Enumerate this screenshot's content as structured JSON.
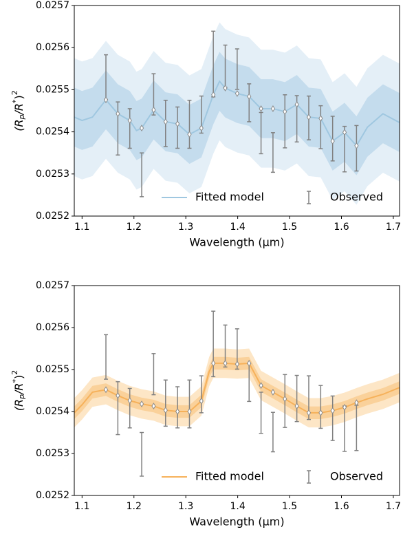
{
  "chart_data": [
    {
      "type": "line",
      "xlabel": "Wavelength (μm)",
      "ylabel_parts": [
        "(R",
        "p",
        "/R",
        "*",
        ")",
        "2"
      ],
      "xlim": [
        1.085,
        1.712
      ],
      "ylim": [
        0.0252,
        0.0257
      ],
      "xticks": [
        1.1,
        1.2,
        1.3,
        1.4,
        1.5,
        1.6,
        1.7
      ],
      "yticks": [
        0.0252,
        0.0253,
        0.0254,
        0.0255,
        0.0256,
        0.0257
      ],
      "legend": "lower right",
      "x": [
        1.085,
        1.1,
        1.12,
        1.146,
        1.169,
        1.192,
        1.205,
        1.215,
        1.238,
        1.261,
        1.284,
        1.307,
        1.33,
        1.353,
        1.365,
        1.376,
        1.399,
        1.422,
        1.445,
        1.468,
        1.491,
        1.514,
        1.537,
        1.56,
        1.583,
        1.606,
        1.629,
        1.65,
        1.68,
        1.712
      ],
      "series": [
        {
          "name": "Fitted model",
          "color": "#9fc7e0",
          "values": [
            0.025435,
            0.025427,
            0.025435,
            0.025476,
            0.025443,
            0.025427,
            0.025403,
            0.025409,
            0.025452,
            0.025424,
            0.025419,
            0.025394,
            0.025409,
            0.025488,
            0.02552,
            0.025504,
            0.025491,
            0.025484,
            0.025455,
            0.025455,
            0.025448,
            0.025465,
            0.025435,
            0.025432,
            0.025378,
            0.025399,
            0.025367,
            0.025411,
            0.025443,
            0.025422
          ],
          "bands": [
            {
              "color": "#e4eff7",
              "lower": [
                0.025295,
                0.025287,
                0.025295,
                0.025336,
                0.025303,
                0.025287,
                0.025263,
                0.025269,
                0.025312,
                0.025284,
                0.025279,
                0.025254,
                0.025269,
                0.025348,
                0.02538,
                0.025364,
                0.025351,
                0.025344,
                0.025315,
                0.025315,
                0.025308,
                0.025325,
                0.025295,
                0.025292,
                0.025238,
                0.025259,
                0.025227,
                0.025271,
                0.025303,
                0.025282
              ],
              "upper": [
                0.025575,
                0.025567,
                0.025575,
                0.025616,
                0.025583,
                0.025567,
                0.025543,
                0.025549,
                0.025592,
                0.025564,
                0.025559,
                0.025534,
                0.025549,
                0.025628,
                0.02566,
                0.025644,
                0.025631,
                0.025624,
                0.025595,
                0.025595,
                0.025588,
                0.025605,
                0.025575,
                0.025572,
                0.025518,
                0.025539,
                0.025507,
                0.025551,
                0.025583,
                0.025562
              ]
            },
            {
              "color": "#c4dced",
              "lower": [
                0.025365,
                0.025357,
                0.025365,
                0.025406,
                0.025373,
                0.025357,
                0.025333,
                0.025339,
                0.025382,
                0.025354,
                0.025349,
                0.025324,
                0.025339,
                0.025418,
                0.02545,
                0.025434,
                0.025421,
                0.025414,
                0.025385,
                0.025385,
                0.025378,
                0.025395,
                0.025365,
                0.025362,
                0.025308,
                0.025329,
                0.025297,
                0.025341,
                0.025373,
                0.025352
              ],
              "upper": [
                0.025505,
                0.025497,
                0.025505,
                0.025546,
                0.025513,
                0.025497,
                0.025473,
                0.025479,
                0.025522,
                0.025494,
                0.025489,
                0.025464,
                0.025479,
                0.025558,
                0.02559,
                0.025574,
                0.025561,
                0.025554,
                0.025525,
                0.025525,
                0.025518,
                0.025535,
                0.025505,
                0.025502,
                0.025448,
                0.025469,
                0.025437,
                0.025481,
                0.025513,
                0.025492
              ]
            }
          ]
        }
      ],
      "observed": {
        "name": "Observed",
        "color": "#808080",
        "x": [
          1.146,
          1.169,
          1.192,
          1.215,
          1.238,
          1.261,
          1.284,
          1.307,
          1.33,
          1.353,
          1.376,
          1.399,
          1.422,
          1.445,
          1.468,
          1.491,
          1.514,
          1.537,
          1.56,
          1.583,
          1.606,
          1.629
        ],
        "values": [
          0.02553,
          0.025408,
          0.025408,
          0.025298,
          0.025489,
          0.02542,
          0.02541,
          0.025418,
          0.025441,
          0.025561,
          0.025556,
          0.025549,
          0.025469,
          0.025397,
          0.025351,
          0.025425,
          0.025431,
          0.025433,
          0.025411,
          0.025384,
          0.025359,
          0.025361
        ],
        "errors": [
          5.3e-05,
          6.3e-05,
          4.7e-05,
          5.2e-05,
          4.9e-05,
          5.5e-05,
          4.9e-05,
          5.7e-05,
          4.4e-05,
          7.8e-05,
          5e-05,
          4.8e-05,
          4.5e-05,
          4.9e-05,
          4.7e-05,
          6.3e-05,
          5.5e-05,
          5.2e-05,
          5.1e-05,
          5.3e-05,
          5.4e-05,
          5.4e-05
        ]
      },
      "binned_model": {
        "color": "#8a8a8a",
        "values": [
          0.025476,
          0.025443,
          0.025427,
          0.025409,
          0.025452,
          0.025424,
          0.025419,
          0.025394,
          0.025409,
          0.025488,
          0.025504,
          0.025491,
          0.025484,
          0.025455,
          0.025455,
          0.025448,
          0.025465,
          0.025435,
          0.025432,
          0.025378,
          0.025399,
          0.025367
        ]
      }
    },
    {
      "type": "line",
      "xlabel": "Wavelength (μm)",
      "ylabel_parts": [
        "(R",
        "p",
        "/R",
        "*",
        ")",
        "2"
      ],
      "xlim": [
        1.085,
        1.712
      ],
      "ylim": [
        0.0252,
        0.0257
      ],
      "xticks": [
        1.1,
        1.2,
        1.3,
        1.4,
        1.5,
        1.6,
        1.7
      ],
      "yticks": [
        0.0252,
        0.0253,
        0.0254,
        0.0255,
        0.0256,
        0.0257
      ],
      "legend": "lower right",
      "x": [
        1.085,
        1.1,
        1.12,
        1.146,
        1.169,
        1.192,
        1.215,
        1.238,
        1.261,
        1.284,
        1.307,
        1.33,
        1.345,
        1.353,
        1.376,
        1.399,
        1.422,
        1.445,
        1.468,
        1.491,
        1.514,
        1.537,
        1.56,
        1.583,
        1.606,
        1.629,
        1.65,
        1.68,
        1.712
      ],
      "series": [
        {
          "name": "Fitted model",
          "color": "#f6b15a",
          "values": [
            0.025397,
            0.025416,
            0.025446,
            0.025452,
            0.025438,
            0.025426,
            0.025418,
            0.025413,
            0.025403,
            0.0254,
            0.0254,
            0.025425,
            0.025495,
            0.025515,
            0.025515,
            0.025513,
            0.025515,
            0.025462,
            0.025446,
            0.02543,
            0.025413,
            0.025397,
            0.025397,
            0.025402,
            0.02541,
            0.025421,
            0.02543,
            0.025441,
            0.025457
          ],
          "bands": [
            {
              "color": "#fde6c6",
              "lower": [
                0.025362,
                0.025381,
                0.025411,
                0.025417,
                0.025403,
                0.025391,
                0.025383,
                0.025378,
                0.025368,
                0.025365,
                0.025365,
                0.02539,
                0.02546,
                0.02548,
                0.02548,
                0.025478,
                0.02548,
                0.025427,
                0.025411,
                0.025395,
                0.025378,
                0.025362,
                0.025362,
                0.025367,
                0.025375,
                0.025386,
                0.025395,
                0.025406,
                0.025422
              ],
              "upper": [
                0.025432,
                0.025451,
                0.025481,
                0.025487,
                0.025473,
                0.025461,
                0.025453,
                0.025448,
                0.025438,
                0.025435,
                0.025435,
                0.02546,
                0.02553,
                0.02555,
                0.02555,
                0.025548,
                0.02555,
                0.025497,
                0.025481,
                0.025465,
                0.025448,
                0.025432,
                0.025432,
                0.025437,
                0.025445,
                0.025456,
                0.025465,
                0.025476,
                0.025492
              ]
            },
            {
              "color": "#fad19a",
              "lower": [
                0.025382,
                0.025401,
                0.025431,
                0.025437,
                0.025423,
                0.025411,
                0.025403,
                0.025398,
                0.025388,
                0.025385,
                0.025385,
                0.02541,
                0.02548,
                0.0255,
                0.0255,
                0.025498,
                0.0255,
                0.025447,
                0.025431,
                0.025415,
                0.025398,
                0.025382,
                0.025382,
                0.025387,
                0.025395,
                0.025406,
                0.025415,
                0.025426,
                0.025442
              ],
              "upper": [
                0.025412,
                0.025431,
                0.025461,
                0.025467,
                0.025453,
                0.025441,
                0.025433,
                0.025428,
                0.025418,
                0.025415,
                0.025415,
                0.02544,
                0.02551,
                0.02553,
                0.02553,
                0.025528,
                0.02553,
                0.025477,
                0.025461,
                0.025445,
                0.025428,
                0.025412,
                0.025412,
                0.025417,
                0.025425,
                0.025436,
                0.025445,
                0.025456,
                0.025472
              ]
            }
          ]
        }
      ],
      "observed": {
        "name": "Observed",
        "color": "#808080",
        "x": [
          1.146,
          1.169,
          1.192,
          1.215,
          1.238,
          1.261,
          1.284,
          1.307,
          1.33,
          1.353,
          1.376,
          1.399,
          1.422,
          1.445,
          1.468,
          1.491,
          1.514,
          1.537,
          1.56,
          1.583,
          1.606,
          1.629
        ],
        "values": [
          0.02553,
          0.025408,
          0.025408,
          0.025298,
          0.025489,
          0.02542,
          0.02541,
          0.025418,
          0.025441,
          0.025561,
          0.025556,
          0.025549,
          0.025469,
          0.025397,
          0.025351,
          0.025425,
          0.025431,
          0.025433,
          0.025411,
          0.025384,
          0.025359,
          0.025361
        ],
        "errors": [
          5.3e-05,
          6.3e-05,
          4.7e-05,
          5.2e-05,
          4.9e-05,
          5.5e-05,
          4.9e-05,
          5.7e-05,
          4.4e-05,
          7.8e-05,
          5e-05,
          4.8e-05,
          4.5e-05,
          4.9e-05,
          4.7e-05,
          6.3e-05,
          5.5e-05,
          5.2e-05,
          5.1e-05,
          5.3e-05,
          5.4e-05,
          5.4e-05
        ]
      },
      "binned_model": {
        "color": "#8a8a8a",
        "values": [
          0.025452,
          0.025438,
          0.025426,
          0.025418,
          0.025413,
          0.025403,
          0.0254,
          0.0254,
          0.025425,
          0.025515,
          0.025515,
          0.025513,
          0.025515,
          0.025462,
          0.025446,
          0.02543,
          0.025413,
          0.025397,
          0.025397,
          0.025402,
          0.02541,
          0.025421
        ]
      }
    }
  ]
}
